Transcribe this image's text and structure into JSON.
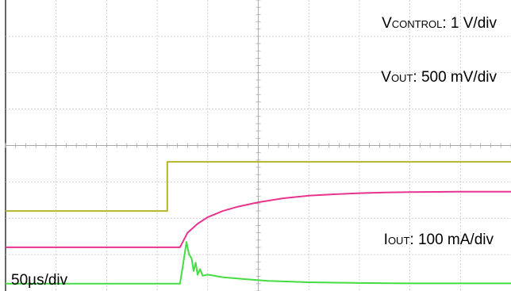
{
  "chart_data": {
    "type": "line",
    "grid": true,
    "divisions": {
      "x": 10,
      "y": 8
    },
    "timebase_label": "50µs/div",
    "x_units_per_div": 50,
    "series": [
      {
        "name_main": "V",
        "name_sub": "CONTROL",
        "scale": ": 1 V/div",
        "color": "#b5b52a",
        "points": [
          [
            0,
            2.2
          ],
          [
            3.2,
            2.2
          ],
          [
            3.2,
            3.55
          ],
          [
            10,
            3.55
          ]
        ]
      },
      {
        "name_main": "V",
        "name_sub": "OUT",
        "scale": ": 500 mV/div",
        "color": "#e8338f",
        "points": [
          [
            0,
            1.2
          ],
          [
            3.45,
            1.2
          ],
          [
            3.6,
            1.6
          ],
          [
            3.8,
            1.85
          ],
          [
            4.0,
            2.03
          ],
          [
            4.3,
            2.2
          ],
          [
            4.6,
            2.32
          ],
          [
            5.0,
            2.44
          ],
          [
            5.5,
            2.55
          ],
          [
            6.0,
            2.62
          ],
          [
            6.5,
            2.66
          ],
          [
            7.0,
            2.69
          ],
          [
            7.5,
            2.71
          ],
          [
            8.0,
            2.72
          ],
          [
            9.0,
            2.73
          ],
          [
            10,
            2.73
          ]
        ]
      },
      {
        "name_main": "I",
        "name_sub": "OUT",
        "scale": ": 100 mA/div",
        "color": "#44dd44",
        "points": [
          [
            0,
            0.2
          ],
          [
            3.45,
            0.2
          ],
          [
            3.52,
            0.8
          ],
          [
            3.58,
            1.35
          ],
          [
            3.63,
            1.0
          ],
          [
            3.68,
            0.9
          ],
          [
            3.72,
            0.55
          ],
          [
            3.76,
            0.78
          ],
          [
            3.8,
            0.45
          ],
          [
            3.85,
            0.6
          ],
          [
            3.9,
            0.42
          ],
          [
            4.0,
            0.45
          ],
          [
            4.3,
            0.38
          ],
          [
            4.7,
            0.33
          ],
          [
            5.2,
            0.28
          ],
          [
            6.0,
            0.24
          ],
          [
            7.0,
            0.22
          ],
          [
            8.0,
            0.21
          ],
          [
            10,
            0.21
          ]
        ]
      }
    ]
  }
}
